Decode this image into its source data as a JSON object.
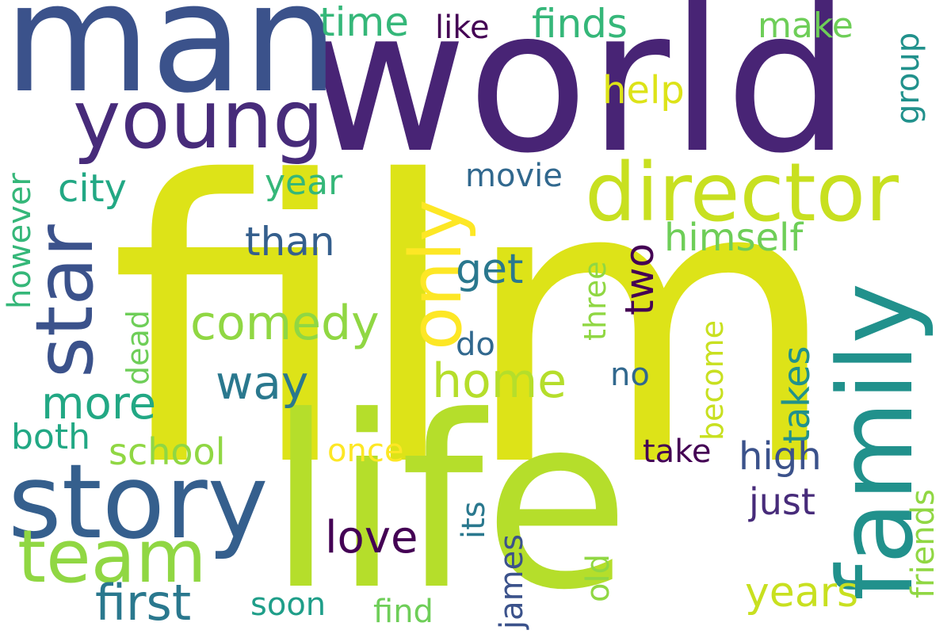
{
  "palette": {
    "deep_purple": "#440154",
    "indigo": "#482475",
    "violet": "#472b7a",
    "blue": "#3b528b",
    "steel": "#355f8d",
    "slate": "#31688e",
    "teal_blue": "#2a788e",
    "teal": "#21918c",
    "sea": "#1f9e89",
    "green_teal": "#22a884",
    "green": "#35b779",
    "light_green": "#6ece58",
    "lime_green": "#90d743",
    "lime": "#b5de2b",
    "yellow_lime": "#c8e020",
    "yellow": "#dde318",
    "bright_yellow": "#fde725"
  },
  "words": {
    "film": "film",
    "world": "world",
    "life": "life",
    "man": "man",
    "family": "family",
    "story": "story",
    "director": "director",
    "young": "young",
    "star": "star",
    "team": "team",
    "only": "only",
    "first": "first",
    "comedy": "comedy",
    "home": "home",
    "way": "way",
    "more": "more",
    "himself": "himself",
    "years": "years",
    "time": "time",
    "finds": "finds",
    "like": "like",
    "make": "make",
    "help": "help",
    "group": "group",
    "city": "city",
    "year": "year",
    "movie": "movie",
    "than": "than",
    "get": "get",
    "two": "two",
    "however": "however",
    "dead": "dead",
    "do": "do",
    "no": "no",
    "three": "three",
    "become": "become",
    "takes": "takes",
    "both": "both",
    "school": "school",
    "once": "once",
    "take": "take",
    "high": "high",
    "just": "just",
    "its": "its",
    "love": "love",
    "james": "james",
    "old": "old",
    "friends": "friends",
    "soon": "soon",
    "find": "find"
  }
}
